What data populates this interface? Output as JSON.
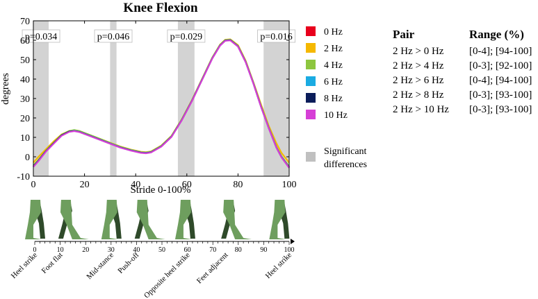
{
  "chart_data": {
    "type": "line",
    "title": "Knee Flexion",
    "xlabel": "Stride 0-100%",
    "ylabel": "degrees",
    "xlim": [
      0,
      100
    ],
    "ylim": [
      -10,
      70
    ],
    "x_ticks": [
      "0",
      "20",
      "40",
      "60",
      "80",
      "100"
    ],
    "y_ticks": [
      "-10",
      "0",
      "10",
      "20",
      "30",
      "40",
      "50",
      "60",
      "70"
    ],
    "x": [
      0,
      2,
      5,
      8,
      11,
      14,
      16,
      18,
      22,
      26,
      30,
      34,
      38,
      42,
      44,
      46,
      50,
      54,
      58,
      62,
      66,
      70,
      73,
      75,
      77,
      80,
      83,
      86,
      89,
      92,
      95,
      97,
      100
    ],
    "series": [
      {
        "name": "0 Hz",
        "color": "#e8001c",
        "values": [
          -5,
          -2,
          3,
          7,
          11,
          13,
          13.5,
          13,
          11,
          9,
          7,
          5,
          3.5,
          2.3,
          2.1,
          2.5,
          5.5,
          10.5,
          19,
          29,
          40,
          51,
          57.5,
          60,
          60.2,
          57,
          49,
          38,
          26,
          15,
          5,
          0,
          -5.5
        ]
      },
      {
        "name": "2 Hz",
        "color": "#f5b800",
        "values": [
          -3,
          0,
          4,
          8,
          11.5,
          13.3,
          13.8,
          13.3,
          11.3,
          9.3,
          7.3,
          5.3,
          3.8,
          2.6,
          2.4,
          2.8,
          5.8,
          10.8,
          19.3,
          29.3,
          40.3,
          51.3,
          57.8,
          60.3,
          60.5,
          57.5,
          49.5,
          38.5,
          27,
          16,
          7,
          2,
          -3
        ]
      },
      {
        "name": "4 Hz",
        "color": "#8dc63f",
        "values": [
          -4.5,
          -1.5,
          3.3,
          7.3,
          11.3,
          13.3,
          13.8,
          13.3,
          11.3,
          9.2,
          7.1,
          5.1,
          3.6,
          2.4,
          2.2,
          2.6,
          5.6,
          10.6,
          19.1,
          29.1,
          40.1,
          51.1,
          57.6,
          60.1,
          60.3,
          57.1,
          49.1,
          38.1,
          26.1,
          15.1,
          5.1,
          0.2,
          -5
        ]
      },
      {
        "name": "6 Hz",
        "color": "#1aabe2",
        "values": [
          -5,
          -2,
          3,
          7,
          11,
          13,
          13.4,
          12.9,
          10.9,
          8.9,
          6.9,
          4.9,
          3.4,
          2.2,
          2.0,
          2.4,
          5.4,
          10.4,
          18.9,
          28.9,
          39.9,
          50.9,
          57.4,
          59.9,
          60.1,
          56.9,
          48.9,
          37.9,
          25.9,
          14.9,
          4.9,
          -0.1,
          -5.5
        ]
      },
      {
        "name": "8 Hz",
        "color": "#0b1d5a",
        "values": [
          -5,
          -2,
          3,
          7,
          11,
          13,
          13.3,
          12.8,
          10.8,
          8.8,
          6.8,
          4.8,
          3.3,
          2.1,
          1.9,
          2.3,
          5.3,
          10.3,
          18.8,
          28.8,
          39.8,
          50.8,
          57.3,
          59.8,
          60.0,
          56.8,
          48.8,
          37.8,
          25.8,
          14.8,
          4.8,
          -0.2,
          -5.6
        ]
      },
      {
        "name": "10 Hz",
        "color": "#d63fd6",
        "values": [
          -5.2,
          -2.2,
          2.8,
          6.8,
          10.8,
          12.8,
          13.2,
          12.7,
          10.7,
          8.7,
          6.7,
          4.7,
          3.2,
          2.0,
          1.8,
          2.2,
          5.2,
          10.2,
          18.7,
          28.7,
          39.7,
          50.7,
          57.2,
          59.7,
          59.9,
          56.7,
          48.7,
          37.7,
          25.7,
          14.7,
          4.7,
          -0.3,
          -5.7
        ]
      }
    ],
    "significant_regions": [
      {
        "range": [
          0,
          6
        ],
        "label": "p=0.034"
      },
      {
        "range": [
          30,
          32.5
        ],
        "label": "p=0.046"
      },
      {
        "range": [
          56.5,
          63
        ],
        "label": "p=0.029"
      },
      {
        "range": [
          90,
          100
        ],
        "label": "p=0.016"
      }
    ],
    "shading_color": "#d3d3d3",
    "significance_legend": "Significant differences",
    "legend": "right",
    "grid": false
  },
  "table": {
    "headers": [
      "Pair",
      "Range (%)"
    ],
    "rows": [
      {
        "pair": "2 Hz > 0 Hz",
        "range": "[0-4]; [94-100]"
      },
      {
        "pair": "2 Hz > 4 Hz",
        "range": "[0-3]; [92-100]"
      },
      {
        "pair": "2 Hz > 6 Hz",
        "range": "[0-4]; [94-100]"
      },
      {
        "pair": "2 Hz > 8 Hz",
        "range": "[0-3]; [93-100]"
      },
      {
        "pair": "2 Hz > 10 Hz",
        "range": "[0-3]; [93-100]"
      }
    ]
  },
  "gait": {
    "ruler_labels": [
      "0",
      "10",
      "20",
      "30",
      "40",
      "50",
      "60",
      "70",
      "80",
      "90",
      "100"
    ],
    "phases": [
      {
        "label": "Heel strike",
        "pct": 0
      },
      {
        "label": "Foot flat",
        "pct": 10
      },
      {
        "label": "Mid-stance",
        "pct": 30
      },
      {
        "label": "Push-off",
        "pct": 40
      },
      {
        "label": "Opposite heel strike",
        "pct": 60
      },
      {
        "label": "Feet adjacent",
        "pct": 75
      },
      {
        "label": "Heel strike",
        "pct": 100
      }
    ],
    "leg_color": "#6e9e5e",
    "leg_dark_color": "#2f4a2a"
  }
}
